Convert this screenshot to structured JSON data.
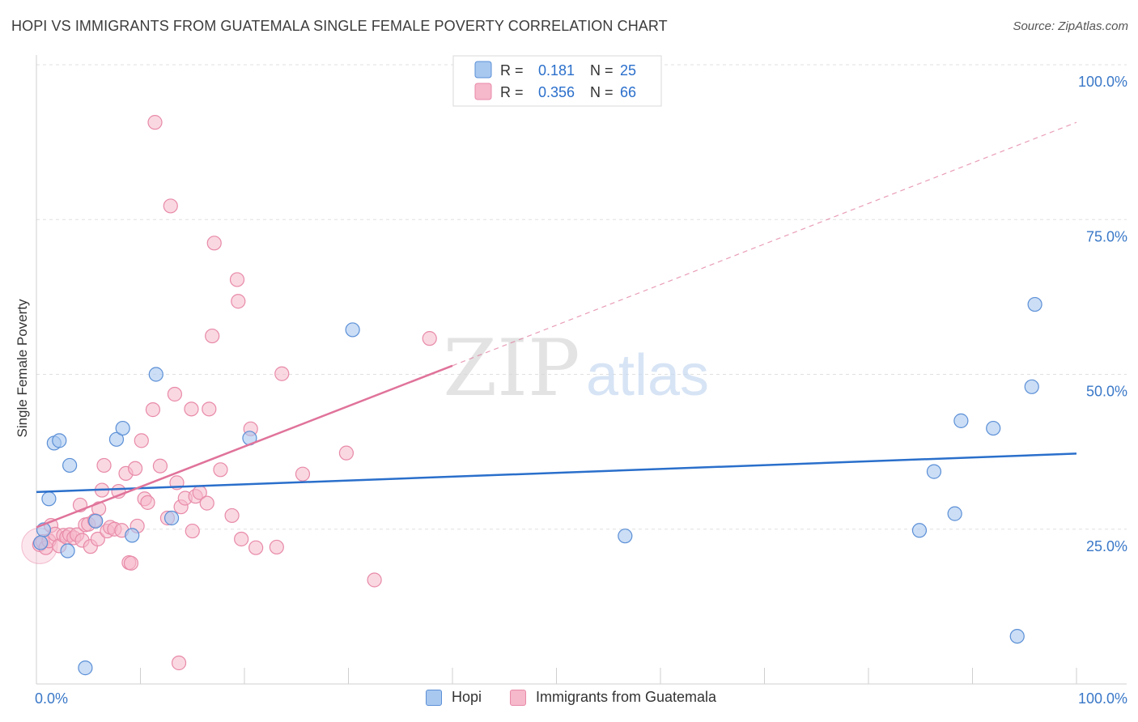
{
  "header": {
    "title": "HOPI VS IMMIGRANTS FROM GUATEMALA SINGLE FEMALE POVERTY CORRELATION CHART",
    "source": "Source: ZipAtlas.com"
  },
  "watermark": {
    "zip": "ZIP",
    "atlas": "atlas"
  },
  "legend_top": {
    "r_label": "R =",
    "n_label": "N =",
    "rows": [
      {
        "r": "0.181",
        "n": "25"
      },
      {
        "r": "0.356",
        "n": "66"
      }
    ]
  },
  "chart_data": {
    "type": "scatter",
    "title": "HOPI VS IMMIGRANTS FROM GUATEMALA SINGLE FEMALE POVERTY CORRELATION CHART",
    "xlabel": "",
    "ylabel": "Single Female Poverty",
    "xlim": [
      0,
      100
    ],
    "ylim": [
      0,
      100
    ],
    "x_tick_labels": [
      "0.0%",
      "100.0%"
    ],
    "y_ticks": [
      25,
      50,
      75,
      100
    ],
    "y_tick_labels": [
      "25.0%",
      "50.0%",
      "75.0%",
      "100.0%"
    ],
    "colors": {
      "hopi_fill": "#a8c8f0",
      "hopi_stroke": "#5b8fd6",
      "hopi_line": "#2a6fcb",
      "guat_fill": "#f6b8cb",
      "guat_stroke": "#e88aa8",
      "guat_line": "#e0739a",
      "tick_text": "#3a78c8"
    },
    "series": [
      {
        "name": "Hopi",
        "r": 0.181,
        "n": 25,
        "trend": {
          "x0": 0,
          "y0": 31.0,
          "x1": 100,
          "y1": 37.2
        },
        "points": [
          {
            "x": 0.7,
            "y": 24.9
          },
          {
            "x": 1.2,
            "y": 29.9
          },
          {
            "x": 1.7,
            "y": 38.9
          },
          {
            "x": 2.2,
            "y": 39.3
          },
          {
            "x": 3.0,
            "y": 21.5
          },
          {
            "x": 3.2,
            "y": 35.3
          },
          {
            "x": 4.7,
            "y": 2.6
          },
          {
            "x": 5.7,
            "y": 26.3
          },
          {
            "x": 7.7,
            "y": 39.5
          },
          {
            "x": 8.3,
            "y": 41.3
          },
          {
            "x": 9.2,
            "y": 24.0
          },
          {
            "x": 11.5,
            "y": 50.0
          },
          {
            "x": 13.0,
            "y": 26.8
          },
          {
            "x": 20.5,
            "y": 39.7
          },
          {
            "x": 30.4,
            "y": 57.2
          },
          {
            "x": 56.6,
            "y": 23.9
          },
          {
            "x": 84.9,
            "y": 24.8
          },
          {
            "x": 86.3,
            "y": 34.3
          },
          {
            "x": 88.3,
            "y": 27.5
          },
          {
            "x": 88.9,
            "y": 42.5
          },
          {
            "x": 92.0,
            "y": 41.3
          },
          {
            "x": 94.3,
            "y": 7.7
          },
          {
            "x": 95.7,
            "y": 48.0
          },
          {
            "x": 96.0,
            "y": 61.3
          },
          {
            "x": 0.4,
            "y": 22.8
          }
        ]
      },
      {
        "name": "Immigrants from Guatemala",
        "r": 0.356,
        "n": 66,
        "trend": {
          "x0": 0,
          "y0": 25.3,
          "x1": 40,
          "y1": 51.4
        },
        "trend_ext": {
          "x0": 40,
          "y0": 51.4,
          "x1": 100,
          "y1": 90.7
        },
        "points": [
          {
            "x": 0.3,
            "y": 22.5
          },
          {
            "x": 0.6,
            "y": 23.0
          },
          {
            "x": 0.9,
            "y": 22.0
          },
          {
            "x": 1.2,
            "y": 23.1
          },
          {
            "x": 1.4,
            "y": 25.6
          },
          {
            "x": 1.8,
            "y": 24.2
          },
          {
            "x": 2.2,
            "y": 22.3
          },
          {
            "x": 2.6,
            "y": 24.0
          },
          {
            "x": 2.9,
            "y": 23.7
          },
          {
            "x": 3.2,
            "y": 24.1
          },
          {
            "x": 3.6,
            "y": 23.6
          },
          {
            "x": 3.9,
            "y": 24.1
          },
          {
            "x": 4.2,
            "y": 28.9
          },
          {
            "x": 4.4,
            "y": 23.2
          },
          {
            "x": 4.7,
            "y": 25.7
          },
          {
            "x": 5.0,
            "y": 25.8
          },
          {
            "x": 5.2,
            "y": 22.2
          },
          {
            "x": 5.6,
            "y": 26.4
          },
          {
            "x": 5.9,
            "y": 23.4
          },
          {
            "x": 6.0,
            "y": 28.3
          },
          {
            "x": 6.3,
            "y": 31.3
          },
          {
            "x": 6.5,
            "y": 35.3
          },
          {
            "x": 6.8,
            "y": 24.7
          },
          {
            "x": 7.1,
            "y": 25.3
          },
          {
            "x": 7.5,
            "y": 25.0
          },
          {
            "x": 7.9,
            "y": 31.1
          },
          {
            "x": 8.2,
            "y": 24.8
          },
          {
            "x": 8.6,
            "y": 34.0
          },
          {
            "x": 8.9,
            "y": 19.6
          },
          {
            "x": 9.1,
            "y": 19.5
          },
          {
            "x": 9.5,
            "y": 34.8
          },
          {
            "x": 9.7,
            "y": 25.5
          },
          {
            "x": 10.1,
            "y": 39.3
          },
          {
            "x": 10.4,
            "y": 29.9
          },
          {
            "x": 10.7,
            "y": 29.3
          },
          {
            "x": 11.2,
            "y": 44.3
          },
          {
            "x": 11.4,
            "y": 90.7
          },
          {
            "x": 11.9,
            "y": 35.2
          },
          {
            "x": 12.6,
            "y": 26.8
          },
          {
            "x": 12.9,
            "y": 77.2
          },
          {
            "x": 13.3,
            "y": 46.8
          },
          {
            "x": 13.5,
            "y": 32.5
          },
          {
            "x": 13.9,
            "y": 28.6
          },
          {
            "x": 13.7,
            "y": 3.4
          },
          {
            "x": 14.3,
            "y": 30.0
          },
          {
            "x": 14.9,
            "y": 44.4
          },
          {
            "x": 15.0,
            "y": 24.7
          },
          {
            "x": 15.3,
            "y": 30.3
          },
          {
            "x": 15.7,
            "y": 30.9
          },
          {
            "x": 16.4,
            "y": 29.2
          },
          {
            "x": 16.6,
            "y": 44.4
          },
          {
            "x": 16.9,
            "y": 56.2
          },
          {
            "x": 17.1,
            "y": 71.2
          },
          {
            "x": 17.7,
            "y": 34.6
          },
          {
            "x": 18.8,
            "y": 27.2
          },
          {
            "x": 19.3,
            "y": 65.3
          },
          {
            "x": 19.4,
            "y": 61.8
          },
          {
            "x": 19.7,
            "y": 23.4
          },
          {
            "x": 20.6,
            "y": 41.2
          },
          {
            "x": 21.1,
            "y": 22.0
          },
          {
            "x": 23.1,
            "y": 22.1
          },
          {
            "x": 23.6,
            "y": 50.1
          },
          {
            "x": 25.6,
            "y": 33.9
          },
          {
            "x": 29.8,
            "y": 37.3
          },
          {
            "x": 32.5,
            "y": 16.8
          },
          {
            "x": 37.8,
            "y": 55.8
          }
        ]
      }
    ]
  },
  "legend_bottom": [
    {
      "label": "Hopi"
    },
    {
      "label": "Immigrants from Guatemala"
    }
  ]
}
